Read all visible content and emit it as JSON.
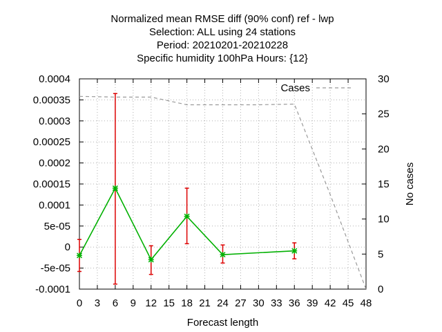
{
  "chart_data": {
    "type": "line",
    "title_lines": [
      "Normalized mean RMSE diff (90% conf) ref - lwp",
      "Selection: ALL using    24 stations",
      "Period: 20210201-20210228",
      "Specific humidity 100hPa   Hours: {12}"
    ],
    "xlabel": "Forecast length",
    "ylabel_left": "",
    "ylabel_right": "No cases",
    "xlim": [
      0,
      48
    ],
    "ylim_left": [
      -0.0001,
      0.0004
    ],
    "ylim_right": [
      0,
      30
    ],
    "x_ticks": [
      "0",
      "3",
      "6",
      "9",
      "12",
      "15",
      "18",
      "21",
      "24",
      "27",
      "30",
      "33",
      "36",
      "39",
      "42",
      "45",
      "48"
    ],
    "y_left_ticks": [
      "-0.0001",
      "-5e-05",
      "0",
      "5e-05",
      "0.0001",
      "0.00015",
      "0.0002",
      "0.00025",
      "0.0003",
      "0.00035",
      "0.0004"
    ],
    "y_right_ticks": [
      "0",
      "5",
      "10",
      "15",
      "20",
      "25",
      "30"
    ],
    "grid": true,
    "legend": {
      "label": "Cases",
      "position": "top-right"
    },
    "series": [
      {
        "axis": "left",
        "color": "#00b000",
        "error_color": "#dd0000",
        "x": [
          0,
          6,
          12,
          18,
          24,
          36
        ],
        "y": [
          -2e-05,
          0.00014,
          -3e-05,
          7.3e-05,
          -1.8e-05,
          -9e-06
        ],
        "err_low": [
          -5.8e-05,
          -8.8e-05,
          -6.5e-05,
          8e-06,
          -3.8e-05,
          -2.8e-05
        ],
        "err_high": [
          1.8e-05,
          0.000365,
          3e-06,
          0.00014,
          5e-06,
          1e-05
        ]
      },
      {
        "name": "Cases",
        "axis": "right",
        "color": "#999999",
        "dashed": true,
        "x": [
          0,
          6,
          12,
          18,
          24,
          30,
          36,
          42,
          48
        ],
        "y": [
          27.5,
          27.4,
          27.4,
          26.3,
          26.3,
          26.3,
          26.4,
          13.5,
          0
        ]
      }
    ]
  }
}
